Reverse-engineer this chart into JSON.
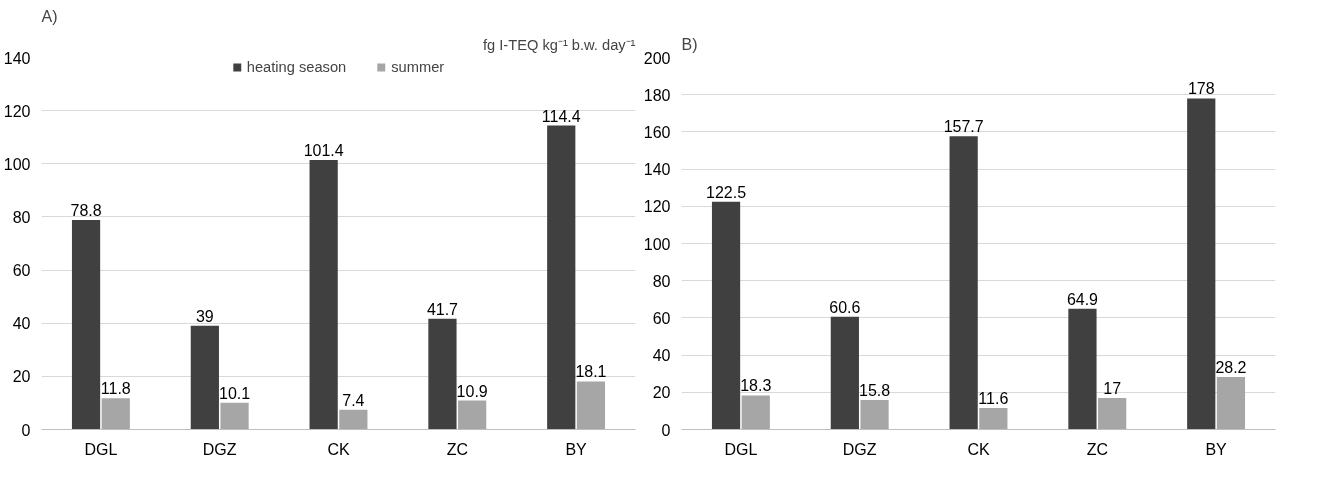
{
  "chart_data": [
    {
      "type": "bar",
      "title": "A)",
      "annotations": [
        "fg I-TEQ kg⁻¹ b.w. day⁻¹"
      ],
      "categories": [
        "DGL",
        "DGZ",
        "CK",
        "ZC",
        "BY"
      ],
      "series": [
        {
          "name": "heating season",
          "color": "#404040",
          "values": [
            78.8,
            39,
            101.4,
            41.7,
            114.4
          ]
        },
        {
          "name": "summer",
          "color": "#a6a6a6",
          "values": [
            11.8,
            10.1,
            7.4,
            10.9,
            18.1
          ]
        }
      ],
      "ylim": [
        0,
        140
      ],
      "yticks": [
        0,
        20,
        40,
        60,
        80,
        100,
        120,
        140
      ],
      "grid": "y",
      "legend": "top",
      "data_labels": true
    },
    {
      "type": "bar",
      "title": "B)",
      "categories": [
        "DGL",
        "DGZ",
        "CK",
        "ZC",
        "BY"
      ],
      "series": [
        {
          "color": "#404040",
          "values": [
            122.5,
            60.6,
            157.7,
            64.9,
            178
          ]
        },
        {
          "color": "#a6a6a6",
          "values": [
            18.3,
            15.8,
            11.6,
            17,
            28.2
          ]
        }
      ],
      "ylim": [
        0,
        200
      ],
      "yticks": [
        0,
        20,
        40,
        60,
        80,
        100,
        120,
        140,
        160,
        180,
        200
      ],
      "grid": "y",
      "data_labels": true
    }
  ]
}
